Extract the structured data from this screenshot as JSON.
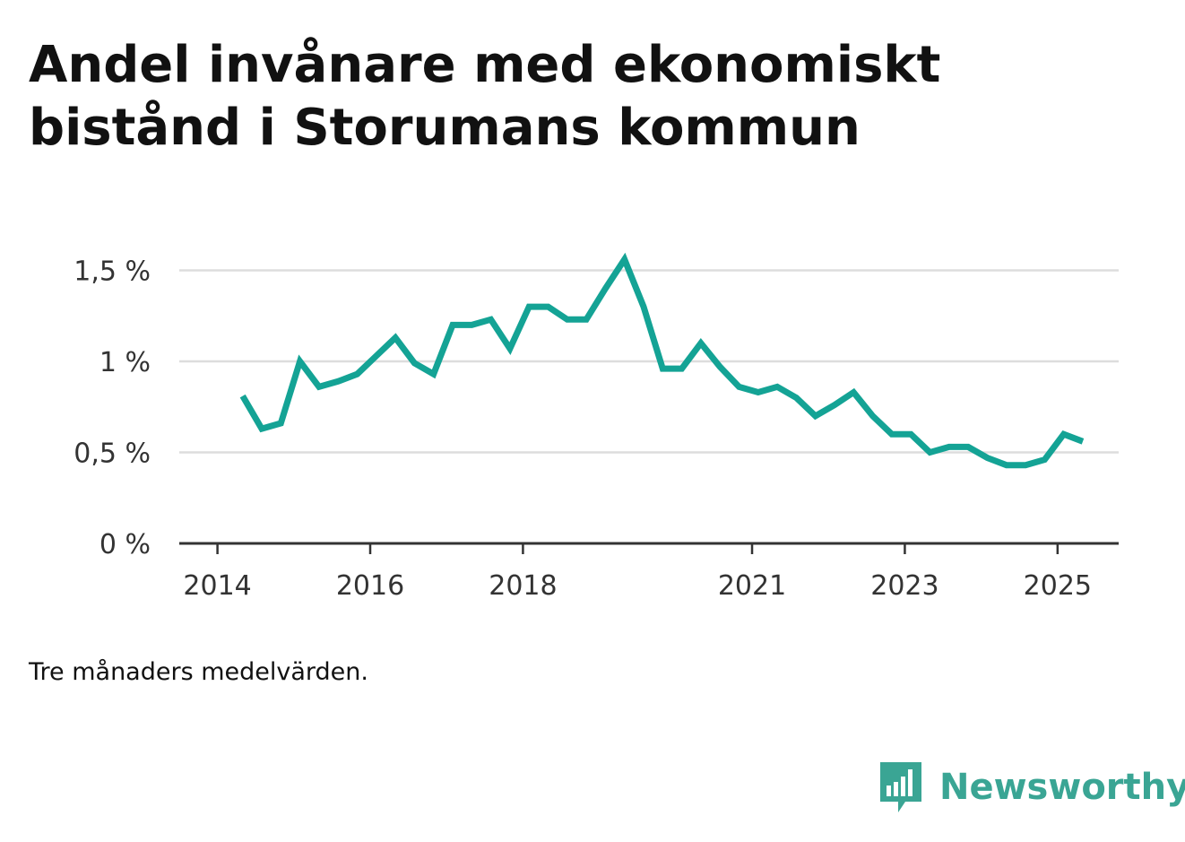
{
  "title": "Andel invånare med ekonomiskt bistånd i Storumans kommun",
  "note": "Tre månaders medelvärden.",
  "brand": {
    "name": "Newsworthy",
    "icon": "newsworthy-logo-icon",
    "color": "#3aa594"
  },
  "colors": {
    "line": "#14a395",
    "grid": "#dddddd",
    "axis": "#333333"
  },
  "chart_data": {
    "type": "line",
    "title": "Andel invånare med ekonomiskt bistånd i Storumans kommun",
    "xlabel": "",
    "ylabel": "",
    "ylim": [
      0,
      1.6
    ],
    "xlim": [
      2013.5,
      2025.8
    ],
    "grid": true,
    "y_ticks": [
      {
        "value": 0,
        "label": "0 %"
      },
      {
        "value": 0.5,
        "label": "0,5 %"
      },
      {
        "value": 1,
        "label": "1 %"
      },
      {
        "value": 1.5,
        "label": "1,5 %"
      }
    ],
    "x_ticks": [
      {
        "value": 2014,
        "label": "2014"
      },
      {
        "value": 2016,
        "label": "2016"
      },
      {
        "value": 2018,
        "label": "2018"
      },
      {
        "value": 2021,
        "label": "2021"
      },
      {
        "value": 2023,
        "label": "2023"
      },
      {
        "value": 2025,
        "label": "2025"
      }
    ],
    "series": [
      {
        "x": [
          2014.33,
          2014.58,
          2014.83,
          2015.08,
          2015.33,
          2015.58,
          2015.83,
          2016.08,
          2016.33,
          2016.58,
          2016.83,
          2017.08,
          2017.33,
          2017.58,
          2017.83,
          2018.08,
          2018.33,
          2018.58,
          2018.83,
          2019.08,
          2019.33,
          2019.58,
          2019.83,
          2020.08,
          2020.33,
          2020.58,
          2020.83,
          2021.08,
          2021.33,
          2021.58,
          2021.83,
          2022.08,
          2022.33,
          2022.58,
          2022.83,
          2023.08,
          2023.33,
          2023.58,
          2023.83,
          2024.08,
          2024.33,
          2024.58,
          2024.83,
          2025.08,
          2025.33
        ],
        "values": [
          0.81,
          0.63,
          0.66,
          1.0,
          0.86,
          0.89,
          0.93,
          1.03,
          1.13,
          0.99,
          0.93,
          1.2,
          1.2,
          1.23,
          1.07,
          1.3,
          1.3,
          1.23,
          1.23,
          1.4,
          1.56,
          1.3,
          0.96,
          0.96,
          1.1,
          0.97,
          0.86,
          0.83,
          0.86,
          0.8,
          0.7,
          0.76,
          0.83,
          0.7,
          0.6,
          0.6,
          0.5,
          0.53,
          0.53,
          0.47,
          0.43,
          0.43,
          0.46,
          0.6,
          0.56
        ]
      }
    ]
  }
}
